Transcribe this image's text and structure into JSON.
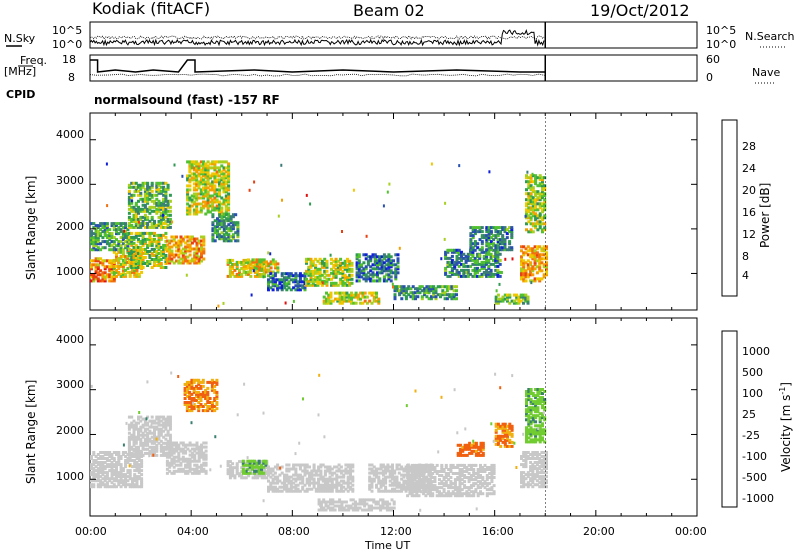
{
  "header": {
    "station": "Kodiak (fitACF)",
    "beam": "Beam 02",
    "date": "19/Oct/2012"
  },
  "panels": {
    "nsky_label": "N.Sky",
    "nsky_ticks": [
      "10^5",
      "10^0"
    ],
    "nsearch_label": "N.Search",
    "nsearch_ticks": [
      "10^5",
      "10^0"
    ],
    "freq_label_1": "Freq.",
    "freq_label_2": "[MHz]",
    "freq_ticks": [
      "18",
      "8"
    ],
    "nave_label": "Nave",
    "nave_ticks": [
      "60",
      "0"
    ],
    "cpid_label": "CPID",
    "cpid_text": "normalsound (fast) -157 RF"
  },
  "colors": {
    "power": [
      "#1020d8",
      "#2850b0",
      "#3c7c78",
      "#2e9a52",
      "#52c030",
      "#a8d020",
      "#f0c800",
      "#f4a000",
      "#f07010",
      "#e84010",
      "#e01010"
    ],
    "velocity": [
      "#1020d8",
      "#2a58b0",
      "#3a8070",
      "#30a050",
      "#70cc30",
      "#c8c8c8",
      "#f0b010",
      "#f08a10",
      "#f06010",
      "#e83010",
      "#e01010"
    ],
    "ground_scatter": "#c8c8c8"
  },
  "chart_data": [
    {
      "type": "heatmap",
      "name": "power",
      "ylabel": "Slant Range [km]",
      "xlabel": "",
      "yticks": [
        "4000",
        "3000",
        "2000",
        "1000"
      ],
      "xlim_hours": [
        0,
        24
      ],
      "ylim_km": [
        180,
        4600
      ],
      "colorbar": {
        "label": "Power [dB]",
        "ticks": [
          "28",
          "24",
          "20",
          "16",
          "12",
          "8",
          "4"
        ],
        "range": [
          0,
          30
        ]
      },
      "regions": [
        {
          "t0": 0.0,
          "t1": 0.9,
          "r0": 800,
          "r1": 1300,
          "value": 22
        },
        {
          "t0": 0.9,
          "t1": 2.0,
          "r0": 900,
          "r1": 1500,
          "value": 18
        },
        {
          "t0": 0.0,
          "t1": 1.5,
          "r0": 1500,
          "r1": 2100,
          "value": 10
        },
        {
          "t0": 1.5,
          "t1": 3.0,
          "r0": 1100,
          "r1": 1900,
          "value": 14
        },
        {
          "t0": 1.5,
          "t1": 3.2,
          "r0": 2000,
          "r1": 3000,
          "value": 12
        },
        {
          "t0": 3.0,
          "t1": 4.5,
          "r0": 1200,
          "r1": 1800,
          "value": 20
        },
        {
          "t0": 3.8,
          "t1": 5.5,
          "r0": 2300,
          "r1": 3500,
          "value": 16
        },
        {
          "t0": 4.8,
          "t1": 5.8,
          "r0": 1700,
          "r1": 2300,
          "value": 9
        },
        {
          "t0": 5.4,
          "t1": 6.9,
          "r0": 900,
          "r1": 1300,
          "value": 17
        },
        {
          "t0": 6.2,
          "t1": 7.4,
          "r0": 1000,
          "r1": 1300,
          "value": 18
        },
        {
          "t0": 7.0,
          "t1": 8.5,
          "r0": 600,
          "r1": 1000,
          "value": 6
        },
        {
          "t0": 8.5,
          "t1": 10.3,
          "r0": 700,
          "r1": 1300,
          "value": 15
        },
        {
          "t0": 9.2,
          "t1": 11.4,
          "r0": 300,
          "r1": 560,
          "value": 16
        },
        {
          "t0": 10.5,
          "t1": 12.2,
          "r0": 800,
          "r1": 1400,
          "value": 7
        },
        {
          "t0": 12.0,
          "t1": 14.5,
          "r0": 400,
          "r1": 700,
          "value": 9
        },
        {
          "t0": 14.0,
          "t1": 16.2,
          "r0": 900,
          "r1": 1500,
          "value": 8
        },
        {
          "t0": 15.0,
          "t1": 16.7,
          "r0": 1500,
          "r1": 2000,
          "value": 8
        },
        {
          "t0": 16.0,
          "t1": 17.3,
          "r0": 300,
          "r1": 500,
          "value": 12
        },
        {
          "t0": 17.0,
          "t1": 18.0,
          "r0": 800,
          "r1": 1600,
          "value": 20
        },
        {
          "t0": 17.2,
          "t1": 18.0,
          "r0": 1900,
          "r1": 3200,
          "value": 14
        }
      ]
    },
    {
      "type": "heatmap",
      "name": "velocity",
      "ylabel": "Slant Range [km]",
      "xlabel": "Time UT",
      "xticks": [
        "00:00",
        "04:00",
        "08:00",
        "12:00",
        "16:00",
        "20:00",
        "00:00"
      ],
      "yticks": [
        "4000",
        "3000",
        "2000",
        "1000"
      ],
      "xlim_hours": [
        0,
        24
      ],
      "ylim_km": [
        180,
        4600
      ],
      "colorbar": {
        "label": "Velocity [m s",
        "label_sup": "-1",
        "label_end": "]",
        "ticks": [
          "1000",
          "500",
          "100",
          "25",
          "-25",
          "-100",
          "-500",
          "-1000"
        ],
        "range": [
          -1000,
          1000
        ]
      },
      "regions": [
        {
          "t0": 0.0,
          "t1": 2.0,
          "r0": 800,
          "r1": 1600,
          "value": "gs"
        },
        {
          "t0": 1.5,
          "t1": 3.2,
          "r0": 1500,
          "r1": 2400,
          "value": "gs"
        },
        {
          "t0": 3.0,
          "t1": 4.6,
          "r0": 1100,
          "r1": 1800,
          "value": "gs"
        },
        {
          "t0": 3.7,
          "t1": 5.0,
          "r0": 2500,
          "r1": 3200,
          "value": -100
        },
        {
          "t0": 5.4,
          "t1": 7.0,
          "r0": 1000,
          "r1": 1400,
          "value": "gs"
        },
        {
          "t0": 6.0,
          "t1": 6.9,
          "r0": 1100,
          "r1": 1400,
          "value": 80
        },
        {
          "t0": 7.0,
          "t1": 10.4,
          "r0": 700,
          "r1": 1300,
          "value": "gs"
        },
        {
          "t0": 9.0,
          "t1": 12.0,
          "r0": 280,
          "r1": 520,
          "value": "gs"
        },
        {
          "t0": 11.0,
          "t1": 13.5,
          "r0": 700,
          "r1": 1300,
          "value": "gs"
        },
        {
          "t0": 12.5,
          "t1": 16.0,
          "r0": 600,
          "r1": 1300,
          "value": "gs"
        },
        {
          "t0": 14.5,
          "t1": 15.5,
          "r0": 1500,
          "r1": 1800,
          "value": -150
        },
        {
          "t0": 16.0,
          "t1": 16.7,
          "r0": 1700,
          "r1": 2200,
          "value": -100
        },
        {
          "t0": 17.0,
          "t1": 18.0,
          "r0": 800,
          "r1": 1600,
          "value": "gs"
        },
        {
          "t0": 17.2,
          "t1": 18.0,
          "r0": 1800,
          "r1": 3000,
          "value": 80
        }
      ]
    }
  ]
}
